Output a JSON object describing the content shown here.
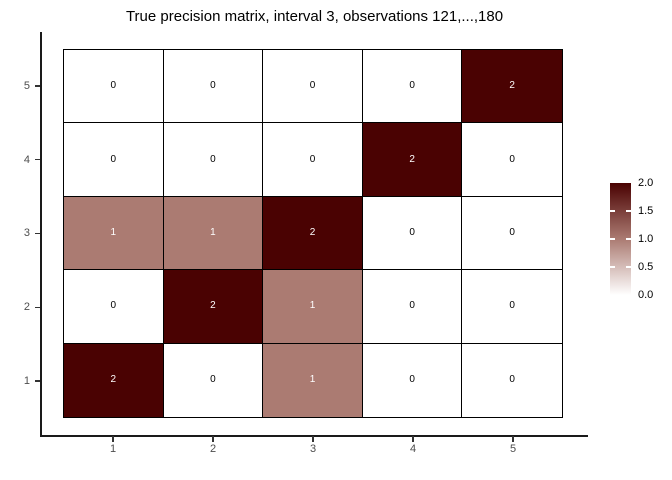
{
  "title": "True precision matrix, interval 3, observations 121,...,180",
  "chart_data": {
    "type": "heatmap",
    "title": "True precision matrix, interval 3, observations 121,...,180",
    "xlabel": "",
    "ylabel": "",
    "x_labels": [
      "1",
      "2",
      "3",
      "4",
      "5"
    ],
    "y_labels": [
      "5",
      "4",
      "3",
      "2",
      "1"
    ],
    "rows": [
      {
        "y": "5",
        "values": [
          0,
          0,
          0,
          0,
          2
        ]
      },
      {
        "y": "4",
        "values": [
          0,
          0,
          0,
          2,
          0
        ]
      },
      {
        "y": "3",
        "values": [
          1,
          1,
          2,
          0,
          0
        ]
      },
      {
        "y": "2",
        "values": [
          0,
          2,
          1,
          0,
          0
        ]
      },
      {
        "y": "1",
        "values": [
          2,
          0,
          1,
          0,
          0
        ]
      }
    ],
    "grid": "cell-borders-black",
    "legend_position": "right",
    "colorbar": {
      "min": 0,
      "max": 2,
      "tick_labels": [
        "2.0",
        "1.5",
        "1.0",
        "0.5",
        "0.0"
      ],
      "inner_tick_values": [
        1.5,
        1.0,
        0.5
      ],
      "color_top": "#4a0202",
      "color_mid": "#ab7b72",
      "color_bottom": "#ffffff"
    },
    "value_colors": {
      "0": "#ffffff",
      "1": "#ab7b72",
      "2": "#4a0202"
    },
    "value_text_colors": {
      "zero": "#000000",
      "nonzero": "#ffffff"
    }
  }
}
